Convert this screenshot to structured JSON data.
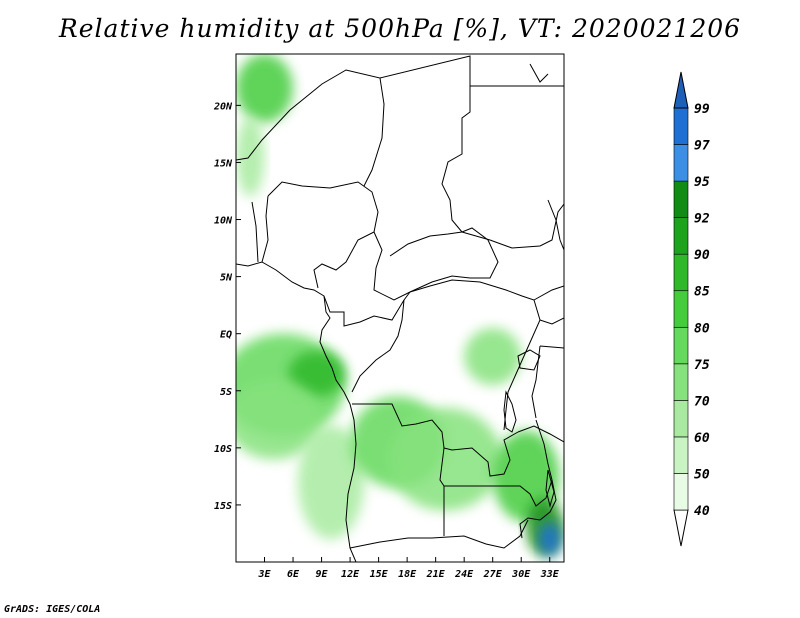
{
  "title": "Relative humidity at 500hPa [%], VT: 2020021206",
  "credit": "GrADS: IGES/COLA",
  "chart_data": {
    "type": "heatmap",
    "title": "Relative humidity at 500hPa [%], VT: 2020021206",
    "variable": "Relative humidity",
    "level": "500hPa",
    "units": "%",
    "valid_time": "2020021206",
    "lon_range": [
      0,
      34.5
    ],
    "lat_range": [
      -20,
      24.5
    ],
    "x_ticks": [
      {
        "lon": 3,
        "label": "3E"
      },
      {
        "lon": 6,
        "label": "6E"
      },
      {
        "lon": 9,
        "label": "9E"
      },
      {
        "lon": 12,
        "label": "12E"
      },
      {
        "lon": 15,
        "label": "15E"
      },
      {
        "lon": 18,
        "label": "18E"
      },
      {
        "lon": 21,
        "label": "21E"
      },
      {
        "lon": 24,
        "label": "24E"
      },
      {
        "lon": 27,
        "label": "27E"
      },
      {
        "lon": 30,
        "label": "30E"
      },
      {
        "lon": 33,
        "label": "33E"
      }
    ],
    "y_ticks": [
      {
        "lat": 20,
        "label": "20N"
      },
      {
        "lat": 15,
        "label": "15N"
      },
      {
        "lat": 10,
        "label": "10N"
      },
      {
        "lat": 5,
        "label": "5N"
      },
      {
        "lat": 0,
        "label": "EQ"
      },
      {
        "lat": -5,
        "label": "5S"
      },
      {
        "lat": -10,
        "label": "10S"
      },
      {
        "lat": -15,
        "label": "15S"
      }
    ],
    "colorbar": {
      "levels": [
        40,
        50,
        60,
        70,
        75,
        80,
        85,
        90,
        92,
        95,
        97,
        99
      ],
      "labels": [
        "40",
        "50",
        "60",
        "70",
        "75",
        "80",
        "85",
        "90",
        "92",
        "95",
        "97",
        "99"
      ],
      "colors": [
        "#ffffff",
        "#e8fbe4",
        "#c9f3c3",
        "#a8eba0",
        "#86e27d",
        "#64d95b",
        "#44cc3c",
        "#2eb82a",
        "#1da41c",
        "#138c15",
        "#3d8fe6",
        "#1f6fd4",
        "#1e5fb8"
      ]
    },
    "moist_regions": [
      {
        "lon": 3.0,
        "lat": 21.5,
        "rx": 3.0,
        "ry": 3.0,
        "rh": 80
      },
      {
        "lon": 1.5,
        "lat": 15.5,
        "rx": 1.5,
        "ry": 3.5,
        "rh": 60
      },
      {
        "lon": 5.0,
        "lat": -4.5,
        "rx": 6.5,
        "ry": 4.5,
        "rh": 75
      },
      {
        "lon": 8.5,
        "lat": -3.5,
        "rx": 3.0,
        "ry": 2.0,
        "rh": 85
      },
      {
        "lon": 4.0,
        "lat": -7.5,
        "rx": 5.0,
        "ry": 3.5,
        "rh": 70
      },
      {
        "lon": 10.0,
        "lat": -13.0,
        "rx": 3.5,
        "ry": 5.0,
        "rh": 60
      },
      {
        "lon": 17.0,
        "lat": -9.5,
        "rx": 5.0,
        "ry": 4.0,
        "rh": 75
      },
      {
        "lon": 22.0,
        "lat": -11.0,
        "rx": 6.0,
        "ry": 4.5,
        "rh": 70
      },
      {
        "lon": 27.0,
        "lat": -2.0,
        "rx": 3.0,
        "ry": 2.5,
        "rh": 70
      },
      {
        "lon": 30.5,
        "lat": -12.5,
        "rx": 3.5,
        "ry": 4.0,
        "rh": 80
      },
      {
        "lon": 32.5,
        "lat": -17.0,
        "rx": 2.0,
        "ry": 2.5,
        "rh": 92
      },
      {
        "lon": 33.0,
        "lat": -18.0,
        "rx": 1.2,
        "ry": 1.5,
        "rh": 97
      }
    ]
  }
}
